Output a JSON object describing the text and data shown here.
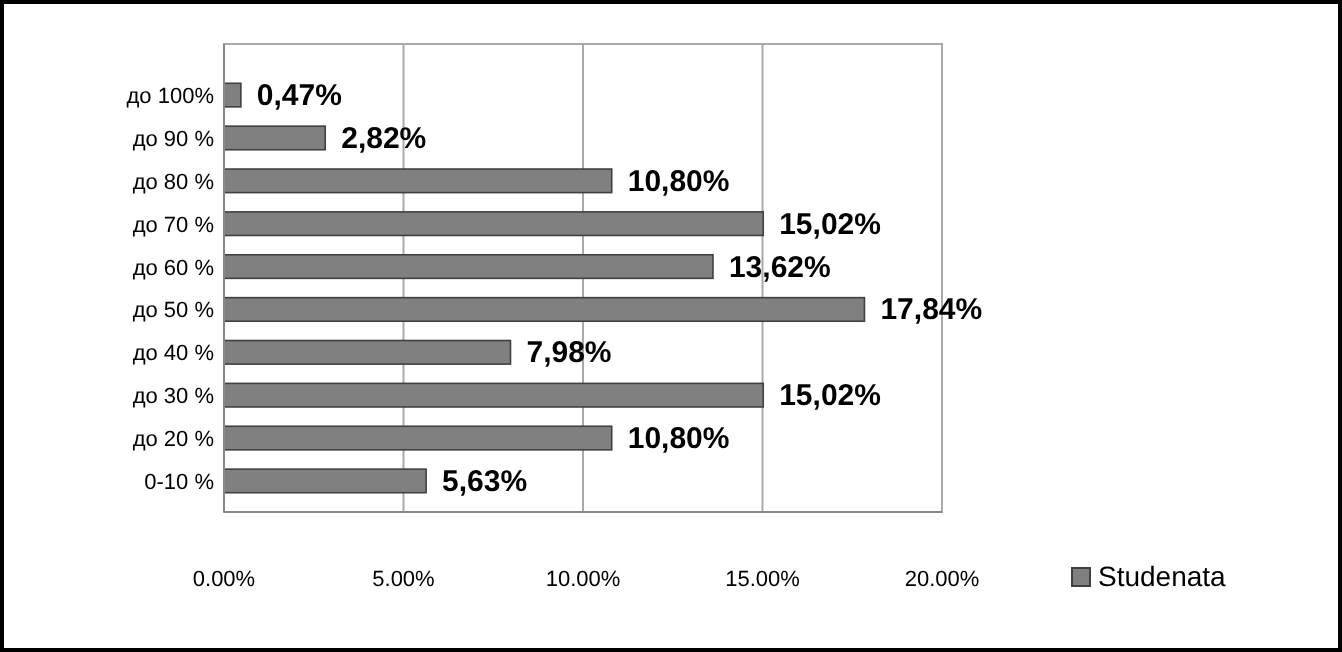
{
  "chart_data": {
    "type": "bar",
    "orientation": "horizontal",
    "categories": [
      "до 100%",
      "до 90 %",
      "до 80 %",
      "до 70 %",
      "до 60 %",
      "до 50 %",
      "до 40 %",
      "до 30 %",
      "до 20 %",
      "0-10 %"
    ],
    "series": [
      {
        "name": "Studenata",
        "color": "#808080",
        "values": [
          0.47,
          2.82,
          10.8,
          15.02,
          13.62,
          17.84,
          7.98,
          15.02,
          10.8,
          5.63
        ],
        "value_labels": [
          "0,47%",
          "2,82%",
          "10,80%",
          "15,02%",
          "13,62%",
          "17,84%",
          "7,98%",
          "15,02%",
          "10,80%",
          "5,63%"
        ]
      }
    ],
    "xlim": [
      0,
      20
    ],
    "xticks": [
      {
        "value": 0,
        "label": "0.00%"
      },
      {
        "value": 5,
        "label": "5.00%"
      },
      {
        "value": 10,
        "label": "10.00%"
      },
      {
        "value": 15,
        "label": "15.00%"
      },
      {
        "value": 20,
        "label": "20.00%"
      }
    ],
    "grid": "x",
    "legend": "right"
  }
}
